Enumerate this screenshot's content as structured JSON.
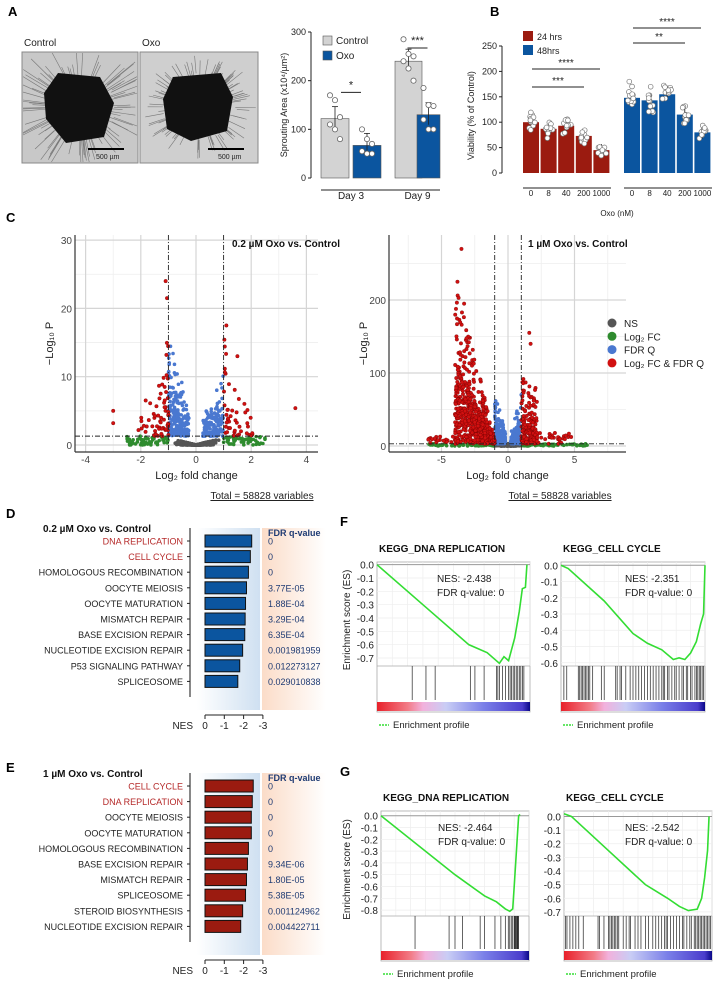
{
  "panel_labels": {
    "a": "A",
    "b": "B",
    "c": "C",
    "d": "D",
    "e": "E",
    "f": "F",
    "g": "G"
  },
  "colors": {
    "control": "#d3d3d3",
    "oxo": "#0b559f",
    "h24": "#9b1b10",
    "h48": "#0b559f",
    "ns": "#555555",
    "log2fc": "#2e8b2e",
    "fdrq": "#4a78d0",
    "both": "#d11010",
    "kegg_red": "#b52a2a",
    "fdr_blue": "#1f3b73",
    "gsea_line": "#33dd33"
  },
  "panel_a": {
    "photos": [
      {
        "label": "Control",
        "scale_bar": "500 µm"
      },
      {
        "label": "Oxo",
        "scale_bar": "500 µm"
      }
    ]
  },
  "chart_data": [
    {
      "id": "A",
      "type": "bar",
      "categories": [
        "Day 3",
        "Day 9"
      ],
      "series": [
        {
          "name": "Control",
          "values": [
            122,
            240
          ],
          "points": [
            [
              170,
              160,
              125,
              110,
              100,
              80
            ],
            [
              285,
              255,
              250,
              240,
              225,
              200
            ]
          ]
        },
        {
          "name": "Oxo",
          "values": [
            67,
            130
          ],
          "points": [
            [
              100,
              80,
              70,
              55,
              50,
              50
            ],
            [
              185,
              150,
              148,
              120,
              100,
              100
            ]
          ]
        }
      ],
      "ylabel": "Sprouting  Area (x10⁴/µm²)",
      "ylim": [
        0,
        300
      ],
      "yticks": [
        0,
        100,
        200,
        300
      ],
      "significance": [
        "*",
        "***"
      ],
      "legend": "top-left"
    },
    {
      "id": "B",
      "type": "bar",
      "categories": [
        "0",
        "8",
        "40",
        "200",
        "1000"
      ],
      "series": [
        {
          "name": "24 hrs",
          "values": [
            100,
            87,
            93,
            73,
            45
          ]
        },
        {
          "name": "48hrs",
          "values": [
            148,
            143,
            155,
            115,
            80
          ]
        }
      ],
      "xlabel": "Oxo (nM)",
      "ylabel": "Viability (% of Control)",
      "ylim": [
        0,
        250
      ],
      "yticks": [
        0,
        50,
        100,
        150,
        200,
        250
      ],
      "significance": [
        {
          "series": "24 hrs",
          "from": "0",
          "to": "1000",
          "label": "****"
        },
        {
          "series": "24 hrs",
          "from": "0",
          "to": "200",
          "label": "***"
        },
        {
          "series": "48hrs",
          "from": "0",
          "to": "1000",
          "label": "****"
        },
        {
          "series": "48hrs",
          "from": "0",
          "to": "200",
          "label": "**"
        }
      ],
      "legend": "top-left"
    },
    {
      "id": "C1",
      "type": "scatter",
      "title": "0.2 µM Oxo vs. Control",
      "xlabel": "Log₂ fold change",
      "ylabel": "−Log₁₀ P",
      "xlim": [
        -4.4,
        4.4
      ],
      "ylim": [
        -1,
        30.7
      ],
      "xticks": [
        -4,
        -2,
        0,
        2,
        4
      ],
      "yticks": [
        0,
        10,
        20,
        30
      ],
      "fc_cutoff": 1,
      "p_cutoff": 1.3,
      "grid": true,
      "caption": "Total = 58828 variables"
    },
    {
      "id": "C2",
      "type": "scatter",
      "title": "1 µM Oxo vs. Control",
      "xlabel": "Log₂ fold change",
      "ylabel": "−Log₁₀ P",
      "xlim": [
        -8.9,
        8.9
      ],
      "ylim": [
        -8,
        289
      ],
      "xticks": [
        -5,
        0,
        5
      ],
      "yticks": [
        0,
        100,
        200
      ],
      "fc_cutoff": 1,
      "p_cutoff": 3,
      "grid": true,
      "caption": "Total = 58828 variables",
      "legend": {
        "placement": "right",
        "entries": [
          "NS",
          "Log₂ FC",
          "FDR Q",
          "Log₂ FC & FDR Q"
        ]
      }
    },
    {
      "id": "D",
      "type": "bar",
      "title": "0.2 µM Oxo vs. Control",
      "orientation": "horizontal",
      "categories": [
        "DNA REPLICATION",
        "CELL CYCLE",
        "HOMOLOGOUS RECOMBINATION",
        "OOCYTE MEIOSIS",
        "OOCYTE MATURATION",
        "MISMATCH REPAIR",
        "BASE EXCISION REPAIR",
        "NUCLEOTIDE EXCISION REPAIR",
        "P53 SIGNALING PATHWAY",
        "SPLICEOSOME"
      ],
      "highlighted": [
        "DNA REPLICATION",
        "CELL CYCLE"
      ],
      "values": [
        -2.42,
        -2.35,
        -2.25,
        -2.15,
        -2.1,
        -2.08,
        -2.06,
        -1.95,
        -1.8,
        -1.7
      ],
      "fdr_header": "FDR q-value",
      "fdr": [
        "0",
        "0",
        "0",
        "3.77E-05",
        "1.88E-04",
        "3.29E-04",
        "6.35E-04",
        "0.001981959",
        "0.012273127",
        "0.029010838"
      ],
      "xlabel": "NES",
      "xticks": [
        "0",
        "-1",
        "-2",
        "-3"
      ],
      "xlim": [
        0,
        -3
      ]
    },
    {
      "id": "E",
      "type": "bar",
      "title": "1 µM Oxo vs. Control",
      "orientation": "horizontal",
      "categories": [
        "CELL CYCLE",
        "DNA REPLICATION",
        "OOCYTE MEIOSIS",
        "OOCYTE MATURATION",
        "HOMOLOGOUS RECOMBINATION",
        "BASE EXCISION REPAIR",
        "MISMATCH REPAIR",
        "SPLICEOSOME",
        "STEROID BIOSYNTHESIS",
        "NUCLEOTIDE EXCISION REPAIR"
      ],
      "highlighted": [
        "CELL CYCLE",
        "DNA REPLICATION"
      ],
      "values": [
        -2.5,
        -2.45,
        -2.4,
        -2.4,
        -2.25,
        -2.2,
        -2.15,
        -2.1,
        -1.95,
        -1.85
      ],
      "fdr_header": "FDR q-value",
      "fdr": [
        "0",
        "0",
        "0",
        "0",
        "0",
        "9.34E-06",
        "1.80E-05",
        "5.38E-05",
        "0.001124962",
        "0.004422711"
      ],
      "xlabel": "NES",
      "xticks": [
        "0",
        "-1",
        "-2",
        "-3"
      ],
      "xlim": [
        0,
        -3
      ]
    },
    {
      "id": "F1",
      "type": "line",
      "title": "KEGG_DNA REPLICATION",
      "nes": "NES: -2.438",
      "fdr": "FDR q-value: 0",
      "ylabel": "Enrichment score (ES)",
      "yticks": [
        "0.0",
        "-0.1",
        "-0.2",
        "-0.3",
        "-0.4",
        "-0.5",
        "-0.6",
        "-0.7"
      ],
      "ylim": [
        -0.76,
        0.02
      ],
      "x": [
        0,
        0.3,
        0.6,
        0.72,
        0.8,
        0.83,
        0.86,
        0.9,
        0.93,
        0.95,
        0.97,
        0.98
      ],
      "y": [
        0,
        -0.3,
        -0.6,
        -0.66,
        -0.74,
        -0.69,
        -0.72,
        -0.55,
        -0.35,
        -0.18,
        -0.17,
        0
      ],
      "hits": [
        0.23,
        0.32,
        0.38,
        0.61,
        0.64,
        0.7,
        0.78,
        0.79,
        0.8,
        0.82,
        0.84,
        0.86,
        0.87,
        0.88,
        0.89,
        0.9,
        0.91,
        0.92,
        0.93,
        0.94,
        0.95,
        0.96
      ],
      "legend": "Enrichment profile"
    },
    {
      "id": "F2",
      "type": "line",
      "title": "KEGG_CELL CYCLE",
      "nes": "NES: -2.351",
      "fdr": "FDR q-value: 0",
      "yticks": [
        "0.0",
        "-0.1",
        "-0.2",
        "-0.3",
        "-0.4",
        "-0.5",
        "-0.6"
      ],
      "ylim": [
        -0.62,
        0.02
      ],
      "x": [
        0,
        0.05,
        0.3,
        0.5,
        0.6,
        0.7,
        0.78,
        0.82,
        0.86,
        0.9,
        0.94,
        0.97,
        0.99,
        1.0
      ],
      "y": [
        0,
        -0.02,
        -0.22,
        -0.42,
        -0.48,
        -0.52,
        -0.58,
        -0.57,
        -0.58,
        -0.54,
        -0.47,
        -0.36,
        -0.3,
        0
      ],
      "hits": [
        0.02,
        0.04,
        0.12,
        0.13,
        0.14,
        0.15,
        0.16,
        0.17,
        0.18,
        0.19,
        0.2,
        0.22,
        0.28,
        0.3,
        0.38,
        0.39,
        0.41,
        0.42,
        0.45,
        0.48,
        0.5,
        0.52,
        0.54,
        0.56,
        0.58,
        0.6,
        0.62,
        0.64,
        0.66,
        0.68,
        0.7,
        0.71,
        0.72,
        0.74,
        0.75,
        0.77,
        0.79,
        0.8,
        0.82,
        0.84,
        0.85,
        0.87,
        0.88,
        0.9,
        0.91,
        0.93,
        0.94,
        0.95,
        0.96,
        0.97,
        0.98,
        0.99
      ],
      "legend": "Enrichment profile"
    },
    {
      "id": "G1",
      "type": "line",
      "title": "KEGG_DNA REPLICATION",
      "nes": "NES: -2.464",
      "fdr": "FDR q-value: 0",
      "ylabel": "Enrichment score (ES)",
      "yticks": [
        "0.0",
        "-0.1",
        "-0.2",
        "-0.3",
        "-0.4",
        "-0.5",
        "-0.6",
        "-0.7",
        "-0.8"
      ],
      "ylim": [
        -0.85,
        0.04
      ],
      "x": [
        0,
        0.5,
        0.7,
        0.78,
        0.84,
        0.87,
        0.89,
        0.9,
        0.92,
        0.93,
        0.94
      ],
      "y": [
        0,
        -0.5,
        -0.68,
        -0.73,
        -0.79,
        -0.81,
        -0.79,
        -0.6,
        -0.2,
        0,
        0.01
      ],
      "hits": [
        0.23,
        0.46,
        0.5,
        0.55,
        0.67,
        0.7,
        0.77,
        0.81,
        0.84,
        0.86,
        0.87,
        0.88,
        0.89,
        0.9,
        0.905,
        0.91,
        0.915,
        0.92,
        0.925,
        0.93
      ],
      "legend": "Enrichment profile"
    },
    {
      "id": "G2",
      "type": "line",
      "title": "KEGG_CELL CYCLE",
      "nes": "NES: -2.542",
      "fdr": "FDR q-value: 0",
      "yticks": [
        "0.0",
        "-0.1",
        "-0.2",
        "-0.3",
        "-0.4",
        "-0.5",
        "-0.6",
        "-0.7"
      ],
      "ylim": [
        -0.73,
        0.04
      ],
      "x": [
        0,
        0.05,
        0.3,
        0.55,
        0.7,
        0.78,
        0.84,
        0.9,
        0.93,
        0.95,
        0.97,
        0.98
      ],
      "y": [
        0.02,
        0,
        -0.25,
        -0.5,
        -0.6,
        -0.66,
        -0.69,
        -0.68,
        -0.6,
        -0.45,
        -0.25,
        0
      ],
      "hits": [
        0.01,
        0.02,
        0.04,
        0.06,
        0.08,
        0.1,
        0.13,
        0.23,
        0.24,
        0.27,
        0.3,
        0.31,
        0.32,
        0.33,
        0.34,
        0.35,
        0.36,
        0.37,
        0.4,
        0.42,
        0.44,
        0.45,
        0.48,
        0.5,
        0.52,
        0.55,
        0.57,
        0.6,
        0.62,
        0.64,
        0.66,
        0.68,
        0.69,
        0.7,
        0.72,
        0.74,
        0.76,
        0.78,
        0.8,
        0.81,
        0.83,
        0.85,
        0.86,
        0.88,
        0.89,
        0.9,
        0.91,
        0.92,
        0.93,
        0.94,
        0.95,
        0.96,
        0.97,
        0.98,
        0.99
      ],
      "legend": "Enrichment profile"
    }
  ]
}
